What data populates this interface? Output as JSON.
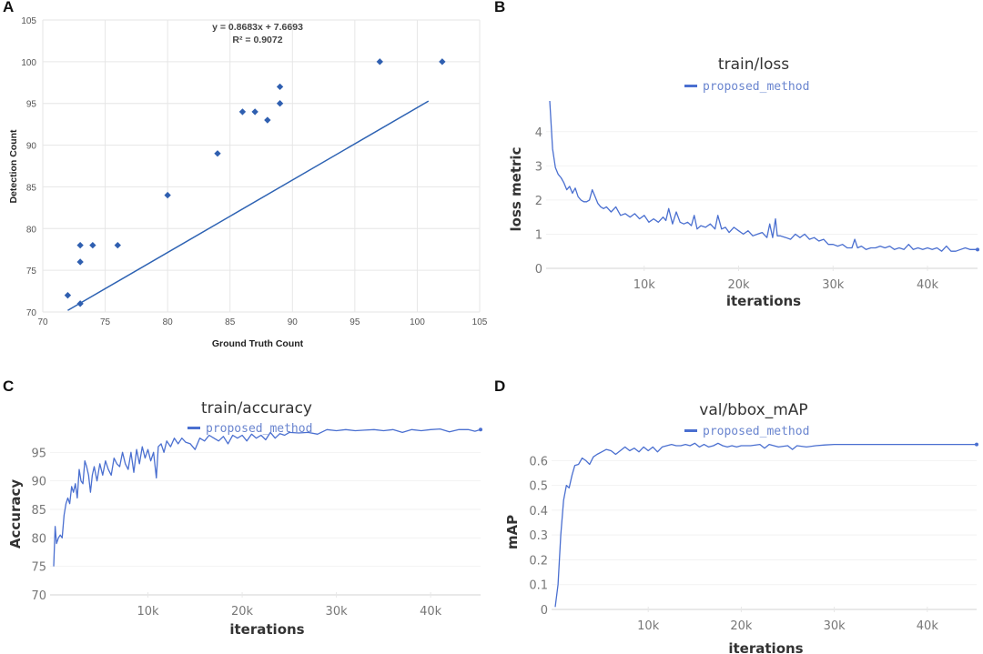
{
  "panels": {
    "A": "A",
    "B": "B",
    "C": "C",
    "D": "D"
  },
  "colors": {
    "series": "#4a6fd0",
    "scatter": "#2f5fb0",
    "trend": "#2d62b3",
    "grid": "#e6e6e6"
  },
  "chart_data": [
    {
      "id": "A",
      "type": "scatter",
      "title": "",
      "xlabel": "Ground Truth Count",
      "ylabel": "Detection Count",
      "xlim": [
        70,
        105
      ],
      "ylim": [
        70,
        105
      ],
      "xticks": [
        "70",
        "75",
        "80",
        "85",
        "90",
        "95",
        "100",
        "105"
      ],
      "yticks": [
        "70",
        "75",
        "80",
        "85",
        "90",
        "95",
        "100",
        "105"
      ],
      "grid": true,
      "points": [
        [
          72,
          72
        ],
        [
          73,
          71
        ],
        [
          73,
          76
        ],
        [
          73,
          78
        ],
        [
          74,
          78
        ],
        [
          76,
          78
        ],
        [
          80,
          84
        ],
        [
          84,
          89
        ],
        [
          86,
          94
        ],
        [
          87,
          94
        ],
        [
          88,
          93
        ],
        [
          89,
          95
        ],
        [
          89,
          97
        ],
        [
          97,
          100
        ],
        [
          102,
          100
        ]
      ],
      "trendline": {
        "slope": 0.8683,
        "intercept": 7.6693,
        "x_range": [
          72,
          100.9
        ]
      },
      "annotations": [
        "y = 0.8683x + 7.6693",
        "R² = 0.9072"
      ]
    },
    {
      "id": "B",
      "type": "line",
      "title": "train/loss",
      "legend": [
        "proposed_method"
      ],
      "legend_position": "top-center",
      "xlabel": "iterations",
      "ylabel": "loss metric",
      "xlim": [
        0,
        45300
      ],
      "ylim": [
        0,
        4.9
      ],
      "xticks": [
        "10k",
        "20k",
        "30k",
        "40k"
      ],
      "xtick_values": [
        10000,
        20000,
        30000,
        40000
      ],
      "yticks": [
        "0",
        "1",
        "2",
        "3",
        "4"
      ],
      "ytick_values": [
        0,
        1,
        2,
        3,
        4
      ],
      "grid": true,
      "series": [
        {
          "name": "proposed_method",
          "x": [
            0,
            300,
            600,
            900,
            1200,
            1500,
            1800,
            2100,
            2400,
            2700,
            3000,
            3300,
            3600,
            3900,
            4200,
            4500,
            4800,
            5100,
            5400,
            5700,
            6000,
            6500,
            7000,
            7500,
            8000,
            8500,
            9000,
            9500,
            10000,
            10500,
            11000,
            11500,
            12000,
            12300,
            12600,
            13000,
            13400,
            13800,
            14200,
            14600,
            15000,
            15300,
            15600,
            16000,
            16500,
            17000,
            17500,
            17800,
            18200,
            18600,
            19000,
            19500,
            20000,
            20500,
            21000,
            21500,
            22000,
            22500,
            23000,
            23300,
            23600,
            23900,
            24100,
            24400,
            25000,
            25500,
            26000,
            26500,
            27000,
            27500,
            28000,
            28500,
            29000,
            29500,
            30000,
            30500,
            31000,
            31500,
            32000,
            32300,
            32600,
            33000,
            33500,
            34000,
            34500,
            35000,
            35500,
            36000,
            36500,
            37000,
            37500,
            38000,
            38500,
            39000,
            39500,
            40000,
            40500,
            41000,
            41500,
            42000,
            42500,
            43000,
            43500,
            44000,
            44500,
            45300
          ],
          "y": [
            4.9,
            3.5,
            2.95,
            2.75,
            2.65,
            2.5,
            2.3,
            2.4,
            2.2,
            2.35,
            2.1,
            2.0,
            1.95,
            1.95,
            2.0,
            2.3,
            2.1,
            1.9,
            1.8,
            1.75,
            1.8,
            1.65,
            1.8,
            1.55,
            1.6,
            1.5,
            1.6,
            1.45,
            1.55,
            1.35,
            1.45,
            1.35,
            1.5,
            1.4,
            1.75,
            1.3,
            1.65,
            1.35,
            1.3,
            1.35,
            1.25,
            1.55,
            1.15,
            1.25,
            1.2,
            1.3,
            1.15,
            1.55,
            1.15,
            1.2,
            1.05,
            1.2,
            1.1,
            1.0,
            1.1,
            0.95,
            1.0,
            1.05,
            0.9,
            1.3,
            0.9,
            1.45,
            0.95,
            0.95,
            0.9,
            0.85,
            1.0,
            0.9,
            1.0,
            0.85,
            0.9,
            0.8,
            0.85,
            0.7,
            0.7,
            0.65,
            0.7,
            0.6,
            0.6,
            0.85,
            0.6,
            0.65,
            0.55,
            0.6,
            0.6,
            0.65,
            0.6,
            0.65,
            0.55,
            0.6,
            0.55,
            0.7,
            0.55,
            0.6,
            0.55,
            0.6,
            0.55,
            0.6,
            0.5,
            0.65,
            0.5,
            0.5,
            0.55,
            0.6,
            0.55,
            0.55
          ]
        }
      ]
    },
    {
      "id": "C",
      "type": "line",
      "title": "train/accuracy",
      "legend": [
        "proposed_method"
      ],
      "legend_position": "top-center",
      "xlabel": "iterations",
      "ylabel": "Accuracy",
      "xlim": [
        0,
        45300
      ],
      "ylim": [
        70,
        100
      ],
      "xticks": [
        "10k",
        "20k",
        "30k",
        "40k"
      ],
      "xtick_values": [
        10000,
        20000,
        30000,
        40000
      ],
      "yticks": [
        "70",
        "75",
        "80",
        "85",
        "90",
        "95"
      ],
      "ytick_values": [
        70,
        75,
        80,
        85,
        90,
        95
      ],
      "grid": true,
      "series": [
        {
          "name": "proposed_method",
          "x": [
            0,
            150,
            300,
            500,
            700,
            900,
            1100,
            1300,
            1500,
            1700,
            1900,
            2100,
            2300,
            2500,
            2700,
            2900,
            3100,
            3300,
            3500,
            3700,
            3900,
            4100,
            4300,
            4600,
            4900,
            5200,
            5500,
            5800,
            6100,
            6400,
            6700,
            7000,
            7300,
            7600,
            7900,
            8200,
            8500,
            8800,
            9100,
            9400,
            9700,
            10000,
            10300,
            10600,
            10900,
            11100,
            11400,
            11700,
            12000,
            12400,
            12800,
            13200,
            13600,
            14000,
            14500,
            15000,
            15500,
            16000,
            16500,
            17000,
            17500,
            18000,
            18500,
            19000,
            19500,
            20000,
            20500,
            21000,
            21500,
            22000,
            22500,
            23000,
            23500,
            24000,
            24500,
            25000,
            26000,
            27000,
            28000,
            29000,
            30000,
            31000,
            32000,
            33000,
            34000,
            35000,
            36000,
            37000,
            38000,
            39000,
            40000,
            41000,
            42000,
            43000,
            44000,
            44700,
            45300
          ],
          "y": [
            75,
            82,
            79,
            80,
            80.5,
            80,
            84,
            86,
            87,
            86,
            89,
            88,
            89.5,
            87,
            92,
            90,
            89.5,
            93.5,
            92.5,
            91,
            88,
            91,
            92.5,
            90,
            93,
            91,
            93.5,
            92,
            91,
            94,
            93,
            92.5,
            95,
            93,
            92,
            95,
            91.5,
            95.5,
            93,
            96,
            94,
            95.5,
            93.5,
            95,
            90.5,
            96,
            96.5,
            95,
            97,
            96,
            97.5,
            96.5,
            97.5,
            96.8,
            96.5,
            95.5,
            97.5,
            97,
            98,
            97.5,
            97,
            97.8,
            96.5,
            98,
            97.5,
            98,
            97,
            98.2,
            97.5,
            98,
            97.2,
            98.5,
            97.5,
            98.3,
            98,
            98.5,
            98.4,
            98.5,
            98.2,
            99,
            98.8,
            99,
            98.8,
            98.9,
            99,
            98.8,
            99,
            98.5,
            99,
            98.8,
            99,
            99.1,
            98.6,
            99,
            99,
            98.7,
            99
          ]
        }
      ]
    },
    {
      "id": "D",
      "type": "line",
      "title": "val/bbox_mAP",
      "legend": [
        "proposed_method"
      ],
      "legend_position": "top-center",
      "xlabel": "iterations",
      "ylabel": "mAP",
      "xlim": [
        0,
        45300
      ],
      "ylim": [
        0,
        0.66
      ],
      "xticks": [
        "10k",
        "20k",
        "30k",
        "40k"
      ],
      "xtick_values": [
        10000,
        20000,
        30000,
        40000
      ],
      "yticks": [
        "0",
        "0.1",
        "0.2",
        "0.3",
        "0.4",
        "0.5",
        "0.6"
      ],
      "ytick_values": [
        0,
        0.1,
        0.2,
        0.3,
        0.4,
        0.5,
        0.6
      ],
      "grid": true,
      "series": [
        {
          "name": "proposed_method",
          "x": [
            0,
            300,
            600,
            900,
            1200,
            1500,
            1800,
            2100,
            2500,
            2900,
            3300,
            3700,
            4100,
            4500,
            5000,
            5500,
            6000,
            6500,
            7000,
            7500,
            8000,
            8500,
            9000,
            9500,
            10000,
            10500,
            11000,
            11500,
            12000,
            12500,
            13000,
            13500,
            14000,
            14500,
            15000,
            15500,
            16000,
            16500,
            17000,
            17500,
            18000,
            18500,
            19000,
            19500,
            20000,
            21000,
            22000,
            22500,
            23000,
            24000,
            25000,
            25500,
            26000,
            27000,
            28000,
            29000,
            30000,
            32000,
            34000,
            36000,
            38000,
            40000,
            42000,
            44000,
            45300
          ],
          "y": [
            0.01,
            0.1,
            0.3,
            0.44,
            0.5,
            0.49,
            0.54,
            0.58,
            0.585,
            0.61,
            0.6,
            0.585,
            0.615,
            0.625,
            0.635,
            0.645,
            0.64,
            0.625,
            0.64,
            0.655,
            0.64,
            0.65,
            0.635,
            0.655,
            0.64,
            0.655,
            0.635,
            0.655,
            0.66,
            0.665,
            0.66,
            0.66,
            0.665,
            0.66,
            0.67,
            0.655,
            0.665,
            0.655,
            0.66,
            0.67,
            0.66,
            0.655,
            0.66,
            0.655,
            0.66,
            0.66,
            0.665,
            0.65,
            0.665,
            0.655,
            0.66,
            0.645,
            0.66,
            0.655,
            0.66,
            0.663,
            0.665,
            0.665,
            0.665,
            0.665,
            0.665,
            0.665,
            0.665,
            0.665,
            0.665
          ]
        }
      ]
    }
  ]
}
